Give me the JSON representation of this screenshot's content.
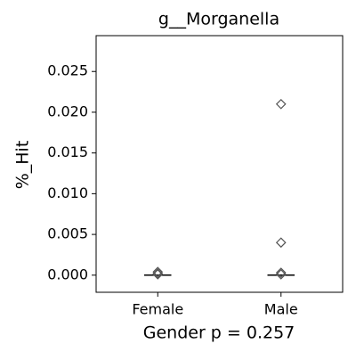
{
  "chart_data": {
    "type": "box",
    "title": "g__Morganella",
    "x_label": "Gender p = 0.257",
    "y_label": "%_Hit",
    "categories": [
      "Female",
      "Male"
    ],
    "boxes": [
      {
        "whislo": 0,
        "q1": 0,
        "median": 0,
        "q3": 0,
        "whishi": 0,
        "outliers": [
          0.0004,
          0.0002,
          0.0001
        ]
      },
      {
        "whislo": 0,
        "q1": 0,
        "median": 0,
        "q3": 0,
        "whishi": 0,
        "outliers": [
          0.021,
          0.004,
          0.0003,
          0.0001
        ]
      }
    ],
    "color": "#000000",
    "outlier_color": "#555555",
    "ylim": [
      -0.0021,
      0.0294
    ],
    "yticks": [
      {
        "value": 0,
        "label": "0.000"
      },
      {
        "value": 0.005,
        "label": "0.005"
      },
      {
        "value": 0.01,
        "label": "0.010"
      },
      {
        "value": 0.015,
        "label": "0.015"
      },
      {
        "value": 0.02,
        "label": "0.020"
      },
      {
        "value": 0.025,
        "label": "0.025"
      }
    ],
    "grid": false
  }
}
